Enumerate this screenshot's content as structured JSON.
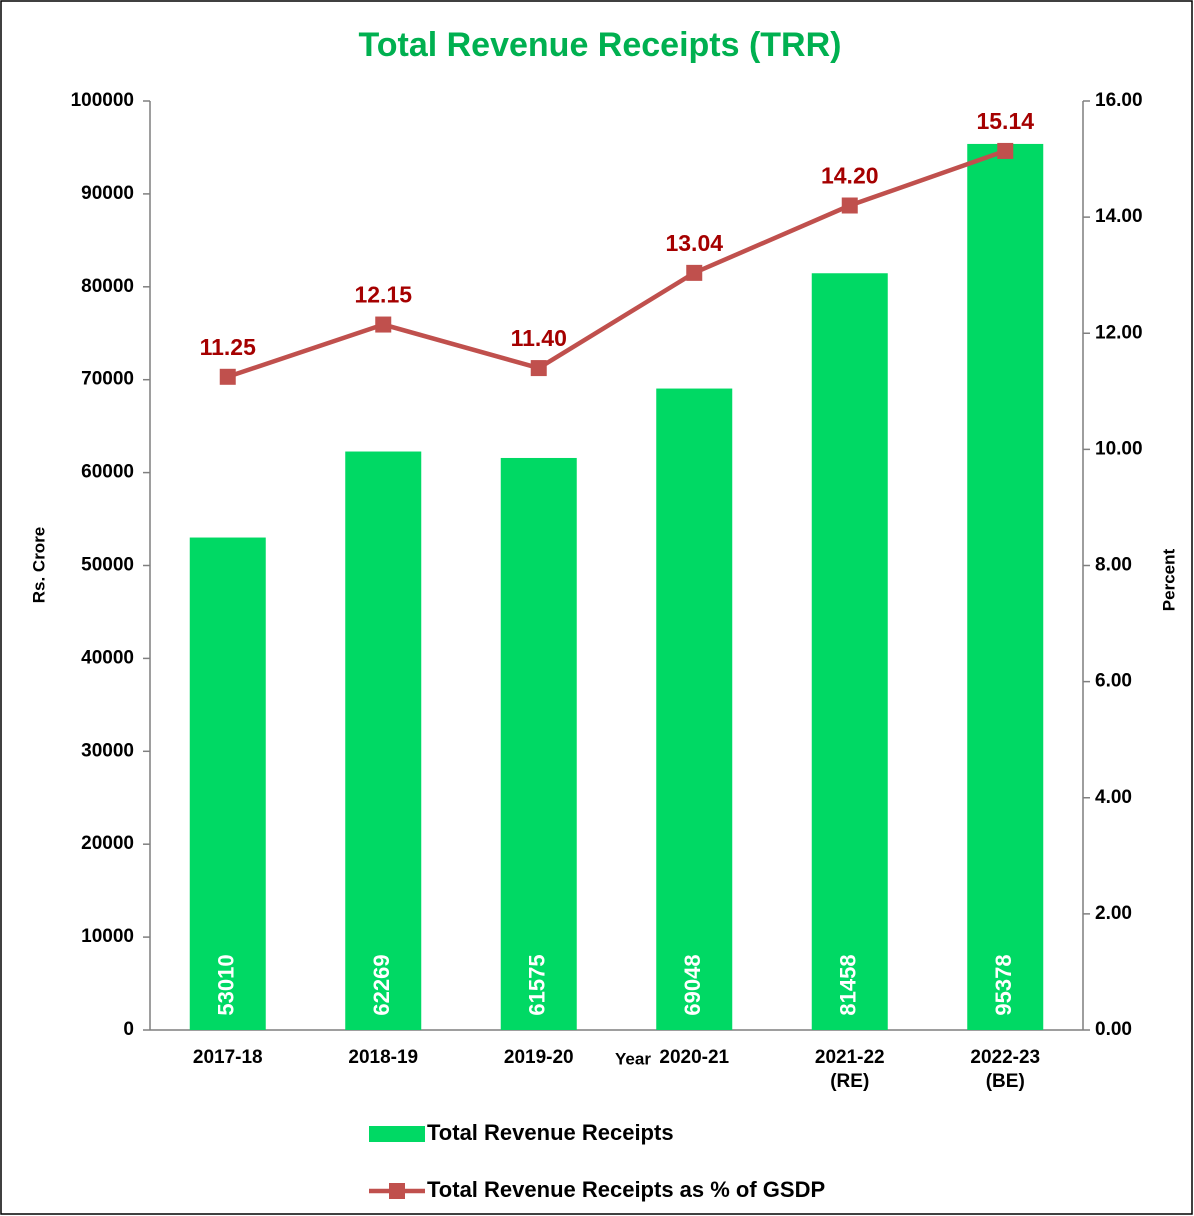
{
  "chart_data": {
    "type": "bar-line",
    "title": "Total Revenue Receipts (TRR)",
    "x_label": "Year",
    "y_label": "Rs. Crore",
    "y2_label": "Percent",
    "categories": [
      "2017-18",
      "2018-19",
      "2019-20",
      "2020-21",
      "2021-22\n(RE)",
      "2022-23\n(BE)"
    ],
    "series": [
      {
        "name": "Total Revenue Receipts",
        "type": "bar",
        "color": "#00d964",
        "values": [
          53010,
          62269,
          61575,
          69048,
          81458,
          95378
        ]
      },
      {
        "name": "Total Revenue Receipts as % of GSDP",
        "type": "line",
        "axis": "y2",
        "color": "#c0504d",
        "label_color": "#a50000",
        "values": [
          11.25,
          12.15,
          11.4,
          13.04,
          14.2,
          15.14
        ],
        "value_labels": [
          "11.25",
          "12.15",
          "11.40",
          "13.04",
          "14.20",
          "15.14"
        ]
      }
    ],
    "ylim": [
      0,
      100000
    ],
    "yticks": [
      0,
      10000,
      20000,
      30000,
      40000,
      50000,
      60000,
      70000,
      80000,
      90000,
      100000
    ],
    "y2lim": [
      0,
      16
    ],
    "y2ticks": [
      {
        "value": 0,
        "label": "0.00"
      },
      {
        "value": 2,
        "label": "2.00"
      },
      {
        "value": 4,
        "label": "4.00"
      },
      {
        "value": 6,
        "label": "6.00"
      },
      {
        "value": 8,
        "label": "8.00"
      },
      {
        "value": 10,
        "label": "10.00"
      },
      {
        "value": 12,
        "label": "12.00"
      },
      {
        "value": 14,
        "label": "14.00"
      },
      {
        "value": 16,
        "label": "16.00"
      }
    ],
    "title_color": "#00b050",
    "grid": false
  }
}
